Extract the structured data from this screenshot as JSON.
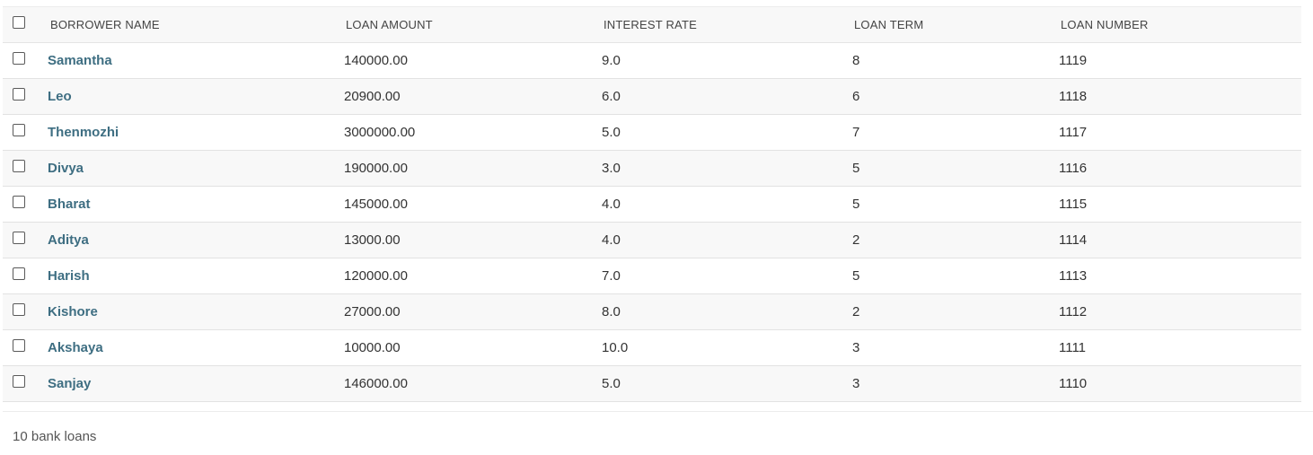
{
  "table": {
    "columns": {
      "borrower_name": "BORROWER NAME",
      "loan_amount": "LOAN AMOUNT",
      "interest_rate": "INTEREST RATE",
      "loan_term": "LOAN TERM",
      "loan_number": "LOAN NUMBER"
    },
    "rows": [
      {
        "name": "Samantha",
        "amount": "140000.00",
        "rate": "9.0",
        "term": "8",
        "number": "1119"
      },
      {
        "name": "Leo",
        "amount": "20900.00",
        "rate": "6.0",
        "term": "6",
        "number": "1118"
      },
      {
        "name": "Thenmozhi",
        "amount": "3000000.00",
        "rate": "5.0",
        "term": "7",
        "number": "1117"
      },
      {
        "name": "Divya",
        "amount": "190000.00",
        "rate": "3.0",
        "term": "5",
        "number": "1116"
      },
      {
        "name": "Bharat",
        "amount": "145000.00",
        "rate": "4.0",
        "term": "5",
        "number": "1115"
      },
      {
        "name": "Aditya",
        "amount": "13000.00",
        "rate": "4.0",
        "term": "2",
        "number": "1114"
      },
      {
        "name": "Harish",
        "amount": "120000.00",
        "rate": "7.0",
        "term": "5",
        "number": "1113"
      },
      {
        "name": "Kishore",
        "amount": "27000.00",
        "rate": "8.0",
        "term": "2",
        "number": "1112"
      },
      {
        "name": "Akshaya",
        "amount": "10000.00",
        "rate": "10.0",
        "term": "3",
        "number": "1111"
      },
      {
        "name": "Sanjay",
        "amount": "146000.00",
        "rate": "5.0",
        "term": "3",
        "number": "1110"
      }
    ]
  },
  "footer": {
    "count_text": "10 bank loans"
  },
  "colors": {
    "link": "#3e6e82",
    "row_alt": "#f8f8f8",
    "border": "#e2e2e2"
  }
}
